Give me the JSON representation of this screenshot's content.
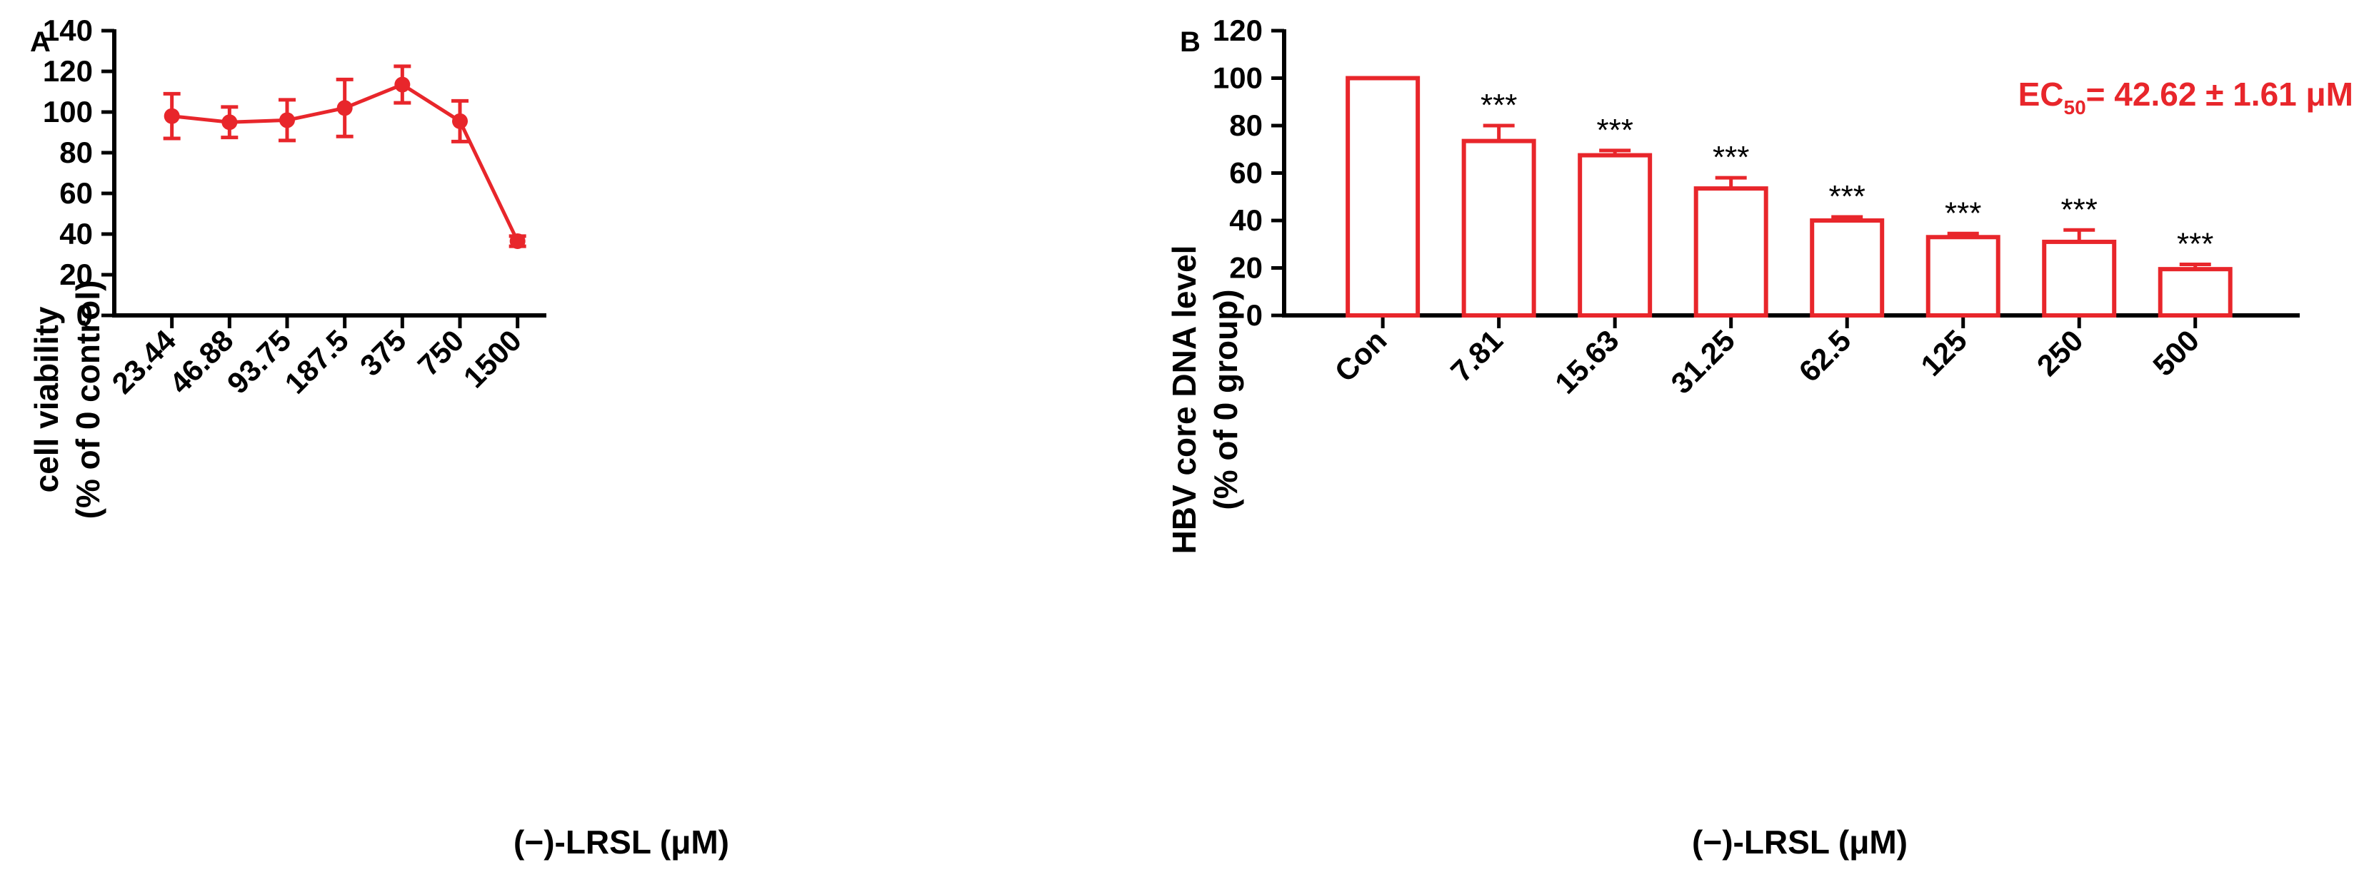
{
  "colors": {
    "series": "#e8262b",
    "axis": "#000000",
    "annotation": "#e8262b"
  },
  "chart_data": [
    {
      "panel": "A",
      "type": "line",
      "title": "",
      "xlabel": "(−)-LRSL (μM)",
      "ylabel_line1": "cell viability",
      "ylabel_line2": "(% of 0 control)",
      "ylim": [
        0,
        140
      ],
      "yticks": [
        "0",
        "20",
        "40",
        "60",
        "80",
        "100",
        "120",
        "140"
      ],
      "categories": [
        "23.44",
        "46.88",
        "93.75",
        "187.5",
        "375",
        "750",
        "1500"
      ],
      "values": [
        98,
        95,
        96,
        102,
        113.5,
        95.5,
        36.5
      ],
      "errors": [
        11,
        7.5,
        10,
        14,
        9,
        10,
        2.5
      ]
    },
    {
      "panel": "B",
      "type": "bar",
      "title": "",
      "xlabel": "(−)-LRSL (μM)",
      "ylabel_line1": "HBV core DNA level",
      "ylabel_line2": "(% of 0 group)",
      "ylim": [
        0,
        120
      ],
      "yticks": [
        "0",
        "20",
        "40",
        "60",
        "80",
        "100",
        "120"
      ],
      "categories": [
        "Con",
        "7.81",
        "15.63",
        "31.25",
        "62.5",
        "125",
        "250",
        "500"
      ],
      "values": [
        100,
        73.5,
        67.5,
        53.5,
        40,
        33,
        31,
        19.5
      ],
      "errors": [
        0,
        6.5,
        2,
        4.5,
        1.5,
        1.5,
        5,
        2
      ],
      "significance": [
        "",
        "***",
        "***",
        "***",
        "***",
        "***",
        "***",
        "***"
      ],
      "annotation": {
        "prefix": "EC",
        "subscript": "50",
        "value": "= 42.62 ± 1.61 μM"
      }
    }
  ]
}
